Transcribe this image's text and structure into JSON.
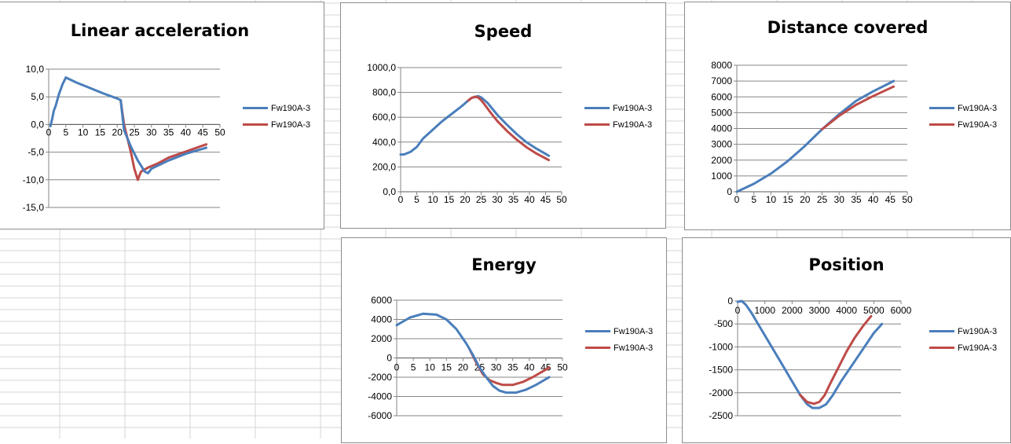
{
  "colors": {
    "series1": "#4a7ebb",
    "series2": "#be4b48",
    "gridline": "#868686",
    "cell_border": "#d4d4d4"
  },
  "chart_data": [
    {
      "type": "line",
      "title": "Linear acceleration",
      "xlabel": "",
      "ylabel": "",
      "xlim": [
        0,
        50
      ],
      "ylim": [
        -15,
        10
      ],
      "x_ticks": [
        "0",
        "5",
        "10",
        "15",
        "20",
        "25",
        "30",
        "35",
        "40",
        "45",
        "50"
      ],
      "y_ticks": [
        "10,0",
        "5,0",
        "0,0",
        "-5,0",
        "-10,0",
        "-15,0"
      ],
      "grid": true,
      "legend": "right",
      "series": [
        {
          "name": "Fw190A-3",
          "x": [
            0.5,
            1,
            1.5,
            2,
            3,
            4,
            5,
            8,
            12,
            16,
            20,
            21,
            22,
            24,
            26,
            28,
            29,
            30,
            35,
            40,
            46
          ],
          "y": [
            -0.3,
            1,
            2.5,
            3.3,
            5.5,
            7.2,
            8.5,
            7.6,
            6.6,
            5.6,
            4.7,
            4.4,
            -1,
            -4,
            -6.5,
            -8.5,
            -8.8,
            -8,
            -6.5,
            -5.3,
            -4.2
          ]
        },
        {
          "name": "Fw190A-3",
          "x": [
            21,
            22,
            24,
            25,
            26,
            26.5,
            27,
            29,
            32,
            35,
            40,
            46
          ],
          "y": [
            4.4,
            0,
            -5,
            -8,
            -10,
            -9.2,
            -8.5,
            -7.8,
            -7,
            -6,
            -4.9,
            -3.6
          ]
        }
      ]
    },
    {
      "type": "line",
      "title": "Speed",
      "xlabel": "",
      "ylabel": "",
      "xlim": [
        0,
        50
      ],
      "ylim": [
        0,
        1000
      ],
      "x_ticks": [
        "0",
        "5",
        "10",
        "15",
        "20",
        "25",
        "30",
        "35",
        "40",
        "45",
        "50"
      ],
      "y_ticks": [
        "1000,0",
        "800,0",
        "600,0",
        "400,0",
        "200,0",
        "0,0"
      ],
      "grid": true,
      "legend": "right",
      "series": [
        {
          "name": "Fw190A-3",
          "x": [
            0,
            1,
            3,
            5,
            7,
            10,
            13,
            16,
            19,
            21,
            22,
            23,
            24,
            25,
            27,
            30,
            33,
            36,
            39,
            42,
            46
          ],
          "y": [
            300,
            300,
            320,
            360,
            430,
            500,
            570,
            630,
            690,
            735,
            755,
            762,
            770,
            760,
            715,
            620,
            540,
            465,
            400,
            350,
            290
          ]
        },
        {
          "name": "Fw190A-3",
          "x": [
            21,
            22,
            23,
            24,
            25,
            26,
            28,
            30,
            33,
            36,
            39,
            42,
            46
          ],
          "y": [
            735,
            755,
            765,
            760,
            738,
            705,
            635,
            570,
            490,
            420,
            360,
            310,
            255
          ]
        }
      ]
    },
    {
      "type": "line",
      "title": "Distance covered",
      "xlabel": "",
      "ylabel": "",
      "xlim": [
        0,
        50
      ],
      "ylim": [
        0,
        8000
      ],
      "x_ticks": [
        "0",
        "5",
        "10",
        "15",
        "20",
        "25",
        "30",
        "35",
        "40",
        "45",
        "50"
      ],
      "y_ticks": [
        "8000",
        "7000",
        "6000",
        "5000",
        "4000",
        "3000",
        "2000",
        "1000",
        "0"
      ],
      "grid": true,
      "legend": "right",
      "series": [
        {
          "name": "Fw190A-3",
          "x": [
            0,
            5,
            10,
            15,
            20,
            25,
            30,
            35,
            40,
            46
          ],
          "y": [
            0,
            500,
            1150,
            1950,
            2900,
            3950,
            4900,
            5750,
            6350,
            7000
          ]
        },
        {
          "name": "Fw190A-3",
          "x": [
            25,
            30,
            35,
            40,
            46
          ],
          "y": [
            3950,
            4800,
            5500,
            6050,
            6650
          ]
        }
      ]
    },
    {
      "type": "line",
      "title": "Energy",
      "xlabel": "",
      "ylabel": "",
      "xlim": [
        0,
        50
      ],
      "ylim": [
        -6000,
        6000
      ],
      "x_ticks": [
        "0",
        "5",
        "10",
        "15",
        "20",
        "25",
        "30",
        "35",
        "40",
        "45",
        "50"
      ],
      "y_ticks": [
        "6000",
        "4000",
        "2000",
        "0",
        "-2000",
        "-4000",
        "-6000"
      ],
      "grid": true,
      "legend": "right",
      "series": [
        {
          "name": "Fw190A-3",
          "x": [
            0,
            4,
            8,
            12,
            15,
            18,
            21,
            23,
            25,
            27,
            29,
            31,
            33,
            36,
            39,
            42,
            46
          ],
          "y": [
            3400,
            4200,
            4600,
            4500,
            4000,
            3000,
            1500,
            300,
            -1000,
            -2000,
            -2900,
            -3400,
            -3600,
            -3600,
            -3300,
            -2800,
            -2000
          ]
        },
        {
          "name": "Fw190A-3",
          "x": [
            22,
            24,
            26,
            28,
            30,
            32,
            35,
            38,
            41,
            44,
            46
          ],
          "y": [
            900,
            -500,
            -1700,
            -2300,
            -2600,
            -2800,
            -2800,
            -2500,
            -2000,
            -1400,
            -1000
          ]
        }
      ]
    },
    {
      "type": "line",
      "title": "Position",
      "xlabel": "",
      "ylabel": "",
      "xlim": [
        0,
        6000
      ],
      "ylim": [
        -2500,
        0
      ],
      "x_ticks": [
        "0",
        "1000",
        "2000",
        "3000",
        "4000",
        "5000",
        "6000"
      ],
      "y_ticks": [
        "0",
        "-500",
        "-1000",
        "-1500",
        "-2000",
        "-2500"
      ],
      "grid": true,
      "legend": "right",
      "series": [
        {
          "name": "Fw190A-3",
          "x": [
            0,
            150,
            300,
            500,
            800,
            1200,
            1600,
            2000,
            2300,
            2550,
            2750,
            3000,
            3250,
            3500,
            3800,
            4200,
            4600,
            5000,
            5300
          ],
          "y": [
            -20,
            0,
            -80,
            -250,
            -550,
            -950,
            -1350,
            -1750,
            -2050,
            -2250,
            -2330,
            -2330,
            -2250,
            -2050,
            -1750,
            -1400,
            -1050,
            -700,
            -500
          ]
        },
        {
          "name": "Fw190A-3",
          "x": [
            2300,
            2550,
            2800,
            3000,
            3200,
            3400,
            3700,
            4000,
            4300,
            4600,
            4900
          ],
          "y": [
            -2050,
            -2200,
            -2240,
            -2200,
            -2050,
            -1800,
            -1450,
            -1100,
            -800,
            -550,
            -330
          ]
        }
      ]
    }
  ]
}
